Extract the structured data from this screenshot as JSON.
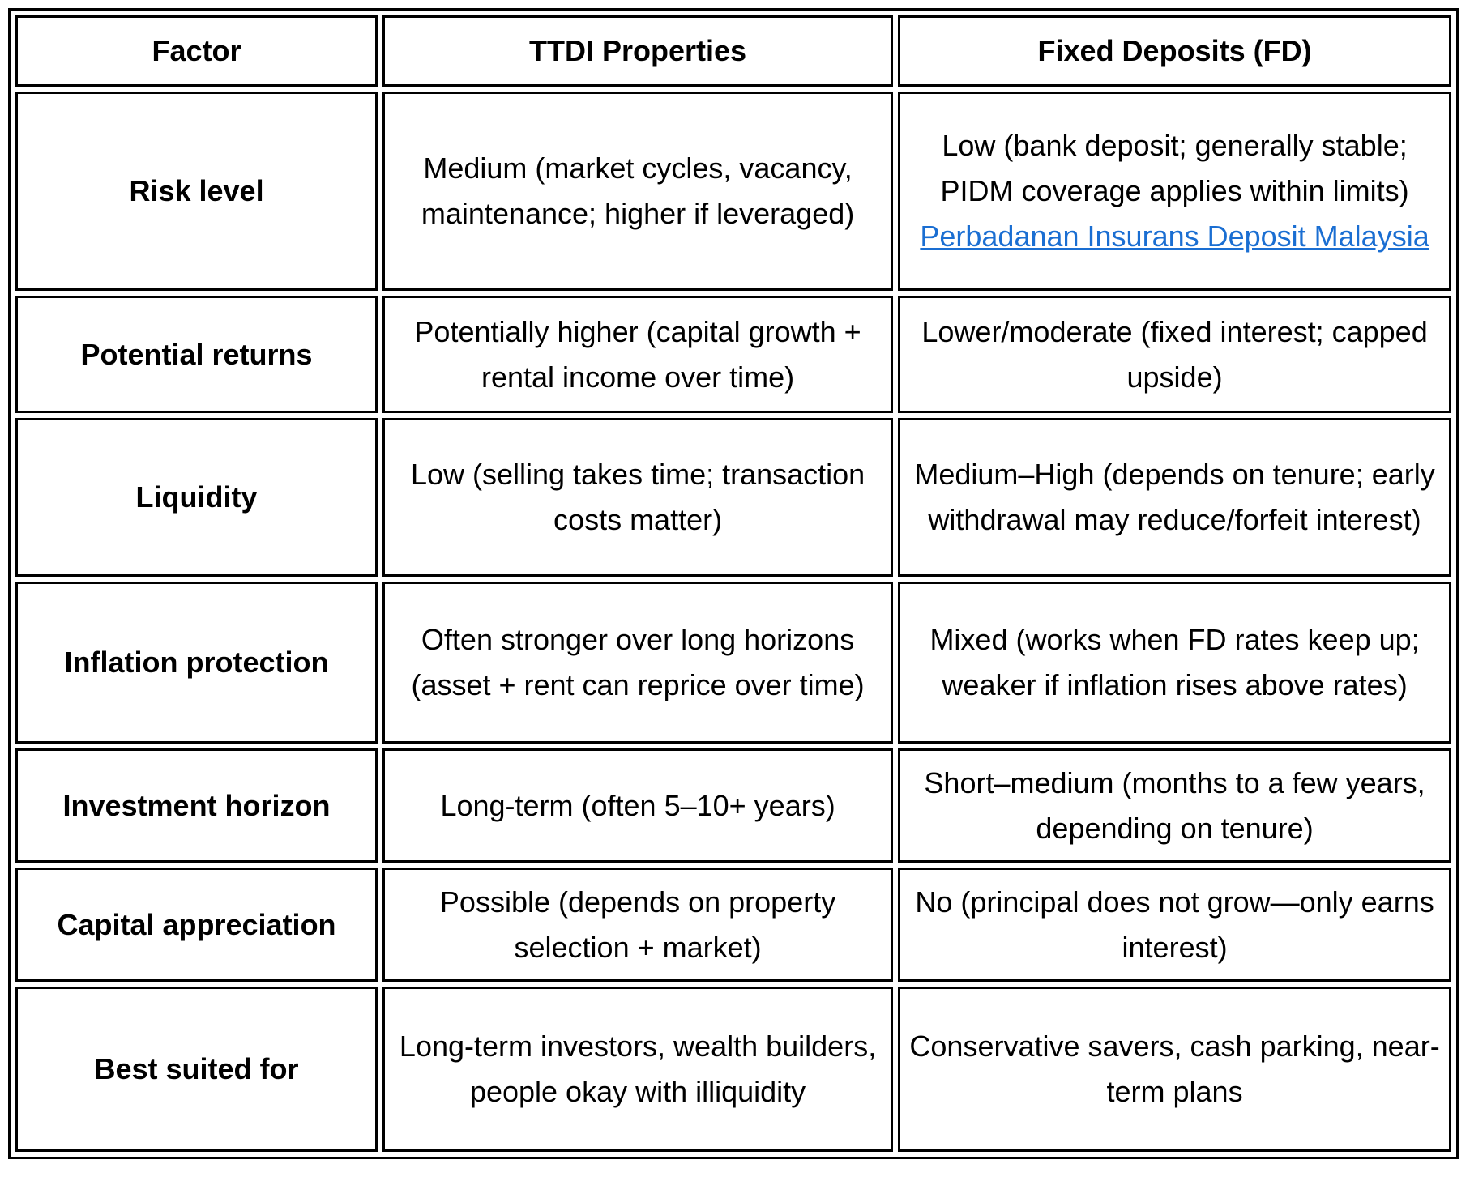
{
  "table": {
    "link_color": "#1a6ed2",
    "headers": {
      "factor": "Factor",
      "ttdi": "TTDI Properties",
      "fd": "Fixed Deposits (FD)"
    },
    "rows": [
      {
        "factor": "Risk level",
        "ttdi": "Medium (market cycles, vacancy, maintenance; higher if leveraged)",
        "fd": "Low (bank deposit; generally stable; PIDM coverage applies within limits)",
        "fd_link": "Perbadanan Insurans Deposit Malaysia"
      },
      {
        "factor": "Potential returns",
        "ttdi": "Potentially higher (capital growth + rental income over time)",
        "fd": "Lower/moderate (fixed interest; capped upside)"
      },
      {
        "factor": "Liquidity",
        "ttdi": "Low (selling takes time; transaction costs matter)",
        "fd": "Medium–High (depends on tenure; early withdrawal may reduce/forfeit interest)"
      },
      {
        "factor": "Inflation protection",
        "ttdi": "Often stronger over long horizons (asset + rent can reprice over time)",
        "fd": "Mixed (works when FD rates keep up; weaker if inflation rises above rates)"
      },
      {
        "factor": "Investment horizon",
        "ttdi": "Long-term (often 5–10+ years)",
        "fd": "Short–medium (months to a few years, depending on tenure)"
      },
      {
        "factor": "Capital appreciation",
        "ttdi": "Possible (depends on property selection + market)",
        "fd": "No (principal does not grow—only earns interest)"
      },
      {
        "factor": "Best suited for",
        "ttdi": "Long-term investors, wealth builders, people okay with illiquidity",
        "fd": "Conservative savers, cash parking, near-term plans"
      }
    ]
  }
}
